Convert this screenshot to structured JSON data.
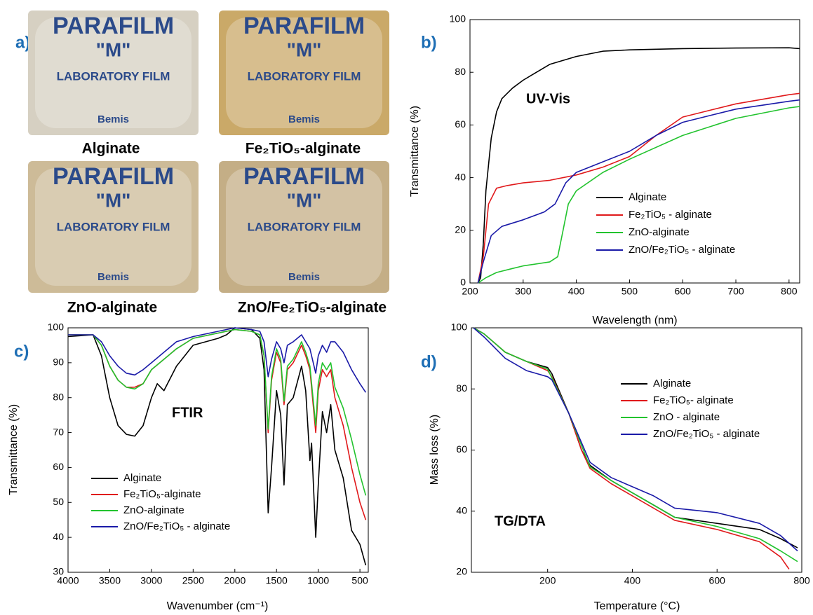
{
  "panel_labels": [
    "a)",
    "b)",
    "c)",
    "d)"
  ],
  "photos": [
    {
      "label": "Alginate",
      "color": "#000000"
    },
    {
      "label": "Fe₂TiO₅-alginate",
      "color": "#e0191b"
    },
    {
      "label": "ZnO-alginate",
      "color": "#22b822"
    },
    {
      "label": "ZnO/Fe₂TiO₅-alginate",
      "color": "#1a2a8c"
    }
  ],
  "photo_print": [
    "PARAFILM",
    "\"M\"",
    "LABORATORY FILM",
    "Bemis"
  ],
  "chart_data": [
    {
      "type": "line",
      "annotation": "UV-Vis",
      "x_label": "Wavelength (nm)",
      "y_label": "Transmittance (%)",
      "xlim": [
        200,
        820
      ],
      "ylim": [
        0,
        100
      ],
      "xticks": [
        200,
        300,
        400,
        500,
        600,
        700,
        800
      ],
      "yticks": [
        0,
        20,
        40,
        60,
        80,
        100
      ],
      "series": [
        {
          "name": "Alginate",
          "color": "#000000",
          "x": [
            215,
            220,
            225,
            230,
            240,
            250,
            260,
            280,
            300,
            350,
            400,
            450,
            500,
            600,
            700,
            800,
            820
          ],
          "values": [
            0,
            2,
            15,
            35,
            55,
            65,
            70,
            74,
            77,
            83,
            86,
            88,
            88.5,
            89,
            89.2,
            89.3,
            89
          ]
        },
        {
          "name": "Fe₂TiO₅ - alginate",
          "color": "#e0191b",
          "x": [
            215,
            225,
            235,
            250,
            270,
            300,
            350,
            400,
            450,
            500,
            550,
            600,
            700,
            800,
            820
          ],
          "values": [
            0,
            10,
            30,
            36,
            37,
            38,
            39,
            41,
            44,
            48,
            56,
            63,
            68,
            71.5,
            72
          ]
        },
        {
          "name": "ZnO-alginate",
          "color": "#22c32e",
          "x": [
            215,
            230,
            250,
            280,
            300,
            350,
            365,
            375,
            385,
            400,
            450,
            500,
            600,
            700,
            800,
            820
          ],
          "values": [
            0,
            2,
            4,
            5.5,
            6.5,
            8,
            10,
            20,
            30,
            35,
            42,
            47,
            56,
            62.5,
            66.5,
            67
          ]
        },
        {
          "name": "ZnO/Fe₂TiO₅ - alginate",
          "color": "#1a1aa8",
          "x": [
            215,
            225,
            240,
            260,
            300,
            340,
            360,
            380,
            400,
            450,
            500,
            550,
            600,
            700,
            800,
            820
          ],
          "values": [
            0,
            8,
            18,
            21.5,
            24,
            27,
            30,
            38,
            42,
            46,
            50,
            56,
            61,
            66,
            69,
            69.5
          ]
        }
      ]
    },
    {
      "type": "line",
      "annotation": "FTIR",
      "x_label": "Wavenumber (cm⁻¹)",
      "y_label": "Transmittance (%)",
      "xlim": [
        4000,
        400
      ],
      "ylim": [
        30,
        100
      ],
      "xticks": [
        4000,
        3500,
        3000,
        2500,
        2000,
        1500,
        1000,
        500
      ],
      "yticks": [
        30,
        40,
        50,
        60,
        70,
        80,
        90,
        100
      ],
      "series": [
        {
          "name": "Alginate",
          "color": "#000000",
          "x": [
            4000,
            3700,
            3600,
            3500,
            3400,
            3300,
            3200,
            3100,
            3000,
            2930,
            2850,
            2700,
            2500,
            2200,
            2100,
            2000,
            1800,
            1700,
            1650,
            1600,
            1560,
            1500,
            1450,
            1410,
            1370,
            1300,
            1200,
            1150,
            1100,
            1080,
            1030,
            1000,
            950,
            900,
            850,
            800,
            700,
            600,
            500,
            430
          ],
          "values": [
            97.5,
            98,
            92,
            80,
            72,
            69.5,
            69,
            72,
            80,
            84,
            82,
            89,
            95,
            97,
            98,
            100,
            99.5,
            97,
            88,
            47,
            60,
            82,
            75,
            55,
            78,
            80,
            89,
            82,
            62,
            67,
            40,
            55,
            76,
            70,
            78,
            65,
            57,
            42,
            38,
            32
          ]
        },
        {
          "name": "Fe₂TiO₅-alginate",
          "color": "#e0191b",
          "x": [
            4000,
            3700,
            3600,
            3500,
            3400,
            3300,
            3200,
            3100,
            3000,
            2900,
            2700,
            2500,
            2000,
            1800,
            1700,
            1650,
            1600,
            1560,
            1500,
            1450,
            1410,
            1370,
            1300,
            1200,
            1150,
            1100,
            1030,
            1000,
            950,
            900,
            850,
            800,
            700,
            600,
            500,
            430
          ],
          "values": [
            98,
            98,
            95,
            89,
            85,
            83,
            83,
            84,
            88,
            90,
            94,
            97,
            99.5,
            99,
            98,
            92,
            70,
            85,
            93,
            90,
            78,
            88,
            90,
            95,
            92,
            88,
            70,
            82,
            88,
            86,
            88,
            80,
            72,
            60,
            50,
            45
          ]
        },
        {
          "name": "ZnO-alginate",
          "color": "#22c32e",
          "x": [
            4000,
            3700,
            3600,
            3500,
            3400,
            3300,
            3200,
            3100,
            3000,
            2900,
            2700,
            2500,
            2000,
            1800,
            1700,
            1650,
            1600,
            1560,
            1500,
            1450,
            1410,
            1370,
            1300,
            1200,
            1150,
            1100,
            1030,
            1000,
            950,
            900,
            850,
            800,
            700,
            600,
            500,
            430
          ],
          "values": [
            98,
            98,
            95,
            89,
            85,
            83,
            82.5,
            84,
            88,
            90,
            94,
            97,
            99.5,
            99,
            98,
            92,
            71,
            86,
            94,
            91,
            79,
            89,
            91,
            96,
            93,
            89,
            72,
            84,
            90,
            88,
            90,
            83,
            77,
            68,
            58,
            52
          ]
        },
        {
          "name": "ZnO/Fe₂TiO₅ - alginate",
          "color": "#1a1aa8",
          "x": [
            4000,
            3700,
            3600,
            3500,
            3400,
            3300,
            3200,
            3100,
            3000,
            2900,
            2700,
            2500,
            2000,
            1800,
            1700,
            1650,
            1600,
            1560,
            1500,
            1450,
            1410,
            1370,
            1300,
            1200,
            1150,
            1100,
            1030,
            1000,
            950,
            900,
            850,
            800,
            700,
            600,
            500,
            430
          ],
          "values": [
            98,
            98,
            96,
            92,
            89,
            87,
            86.5,
            88,
            90,
            92,
            96,
            97.5,
            100,
            99.5,
            99,
            96,
            86,
            91,
            96,
            94,
            90,
            95,
            96,
            98,
            96,
            94,
            87,
            92,
            95,
            93,
            96,
            96,
            93,
            88,
            84,
            81.5
          ]
        }
      ]
    },
    {
      "type": "line",
      "annotation": "TG/DTA",
      "x_label": "Temperature (°C)",
      "y_label": "Mass loss (%)",
      "xlim": [
        20,
        800
      ],
      "ylim": [
        20,
        100
      ],
      "xticks": [
        200,
        400,
        600,
        800
      ],
      "yticks": [
        20,
        40,
        60,
        80,
        100
      ],
      "series": [
        {
          "name": "Alginate",
          "color": "#000000",
          "x": [
            25,
            50,
            100,
            150,
            200,
            210,
            250,
            280,
            300,
            350,
            400,
            450,
            500,
            600,
            700,
            750,
            790
          ],
          "values": [
            100,
            98,
            92,
            89,
            87,
            85,
            72,
            60,
            55,
            50,
            46,
            42,
            38,
            36,
            34,
            31,
            28
          ]
        },
        {
          "name": "Fe₂TiO₅- alginate",
          "color": "#e0191b",
          "x": [
            25,
            50,
            100,
            150,
            200,
            210,
            250,
            280,
            300,
            350,
            400,
            450,
            500,
            600,
            700,
            750,
            770
          ],
          "values": [
            100,
            98,
            92,
            89,
            86,
            84,
            72,
            60,
            54,
            49,
            45,
            41,
            37,
            34,
            30,
            25,
            21
          ]
        },
        {
          "name": "ZnO - alginate",
          "color": "#22c32e",
          "x": [
            25,
            50,
            100,
            150,
            200,
            250,
            300,
            350,
            400,
            450,
            500,
            600,
            700,
            750,
            790
          ],
          "values": [
            100,
            98,
            92,
            89,
            86.5,
            72,
            54.5,
            50,
            46,
            42,
            38,
            35,
            31,
            27,
            23.5
          ]
        },
        {
          "name": "ZnO/Fe₂TiO₅ - alginate",
          "color": "#1a1aa8",
          "x": [
            25,
            50,
            100,
            150,
            200,
            210,
            250,
            300,
            350,
            400,
            450,
            500,
            600,
            700,
            750,
            790
          ],
          "values": [
            100,
            97,
            90,
            86,
            84,
            83,
            72,
            56,
            51,
            48,
            45,
            41,
            39.5,
            36,
            32,
            27
          ]
        }
      ]
    }
  ]
}
